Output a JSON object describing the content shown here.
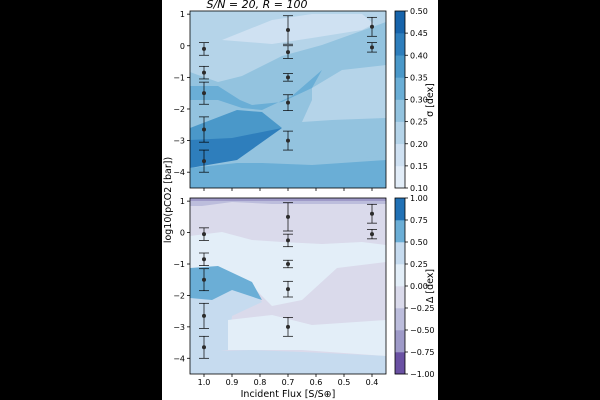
{
  "chart_data": [
    {
      "type": "heatmap",
      "subtype": "filled-contour",
      "title": "S/N = 20, R = 100",
      "xlabel": "Incident Flux [S/S⊕]",
      "ylabel": "log10(pCO2 [bar])",
      "xlim": [
        1.05,
        0.35
      ],
      "ylim": [
        -4.5,
        1.1
      ],
      "x_ticks": [
        "1.0",
        "0.9",
        "0.8",
        "0.7",
        "0.6",
        "0.5",
        "0.4"
      ],
      "y_ticks": [
        "1",
        "0",
        "−1",
        "−2",
        "−3",
        "−4"
      ],
      "colorbar": {
        "label": "σ [dex]",
        "ticks": [
          "0.10",
          "0.15",
          "0.20",
          "0.25",
          "0.30",
          "0.35",
          "0.40",
          "0.45",
          "0.50"
        ],
        "range": [
          0.1,
          0.5
        ],
        "colormap": "Blues"
      },
      "points": [
        {
          "x": 1.0,
          "y": -0.1,
          "yerr": 0.2
        },
        {
          "x": 1.0,
          "y": -0.85,
          "yerr": 0.2
        },
        {
          "x": 1.0,
          "y": -1.5,
          "yerr": 0.35
        },
        {
          "x": 1.0,
          "y": -2.65,
          "yerr": 0.4
        },
        {
          "x": 1.0,
          "y": -3.65,
          "yerr": 0.35
        },
        {
          "x": 0.7,
          "y": 0.5,
          "yerr": 0.45
        },
        {
          "x": 0.7,
          "y": -0.2,
          "yerr": 0.2
        },
        {
          "x": 0.7,
          "y": -1.0,
          "yerr": 0.12
        },
        {
          "x": 0.7,
          "y": -1.8,
          "yerr": 0.25
        },
        {
          "x": 0.7,
          "y": -3.0,
          "yerr": 0.3
        },
        {
          "x": 0.4,
          "y": 0.6,
          "yerr": 0.3
        },
        {
          "x": 0.4,
          "y": -0.05,
          "yerr": 0.15
        }
      ]
    },
    {
      "type": "heatmap",
      "subtype": "filled-contour",
      "title": "",
      "xlabel": "Incident Flux [S/S⊕]",
      "ylabel": "log10(pCO2 [bar])",
      "xlim": [
        1.05,
        0.35
      ],
      "ylim": [
        -4.5,
        1.1
      ],
      "x_ticks": [
        "1.0",
        "0.9",
        "0.8",
        "0.7",
        "0.6",
        "0.5",
        "0.4"
      ],
      "y_ticks": [
        "1",
        "0",
        "−1",
        "−2",
        "−3",
        "−4"
      ],
      "colorbar": {
        "label": "Δ [dex]",
        "ticks": [
          "−1.00",
          "−0.75",
          "−0.50",
          "−0.25",
          "0.00",
          "0.25",
          "0.50",
          "0.75",
          "1.00"
        ],
        "range": [
          -1.0,
          1.0
        ],
        "colormap": "PuBu (diverging)"
      },
      "points": [
        {
          "x": 1.0,
          "y": -0.05,
          "yerr": 0.2
        },
        {
          "x": 1.0,
          "y": -0.85,
          "yerr": 0.2
        },
        {
          "x": 1.0,
          "y": -1.5,
          "yerr": 0.35
        },
        {
          "x": 1.0,
          "y": -2.65,
          "yerr": 0.4
        },
        {
          "x": 1.0,
          "y": -3.65,
          "yerr": 0.35
        },
        {
          "x": 0.7,
          "y": 0.5,
          "yerr": 0.45
        },
        {
          "x": 0.7,
          "y": -0.25,
          "yerr": 0.2
        },
        {
          "x": 0.7,
          "y": -1.0,
          "yerr": 0.12
        },
        {
          "x": 0.7,
          "y": -1.8,
          "yerr": 0.25
        },
        {
          "x": 0.7,
          "y": -3.0,
          "yerr": 0.3
        },
        {
          "x": 0.4,
          "y": 0.6,
          "yerr": 0.3
        },
        {
          "x": 0.4,
          "y": -0.05,
          "yerr": 0.15
        }
      ]
    }
  ],
  "colors": {
    "blues": [
      "#e2edf8",
      "#cfe1f2",
      "#b5d4e9",
      "#93c3df",
      "#6aaed6",
      "#4a98c9",
      "#2e7ebc",
      "#1764ab"
    ],
    "diverging": [
      "#6a51a3",
      "#9e9ac8",
      "#bcbddc",
      "#dadaeb",
      "#e3eef8",
      "#c6dbef",
      "#6baed6",
      "#2171b5"
    ],
    "marker": "#2b2b2b",
    "errorbar": "#000000"
  }
}
